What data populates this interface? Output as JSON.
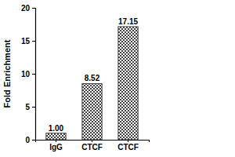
{
  "chart_data": {
    "type": "bar",
    "y_label": "Fold Enrichment",
    "categories": [
      "IgG",
      "CTCF",
      "CTCF"
    ],
    "values": [
      1.0,
      8.52,
      17.15
    ],
    "value_labels": [
      "1.00",
      "8.52",
      "17.15"
    ],
    "data_labels": true,
    "color": "#444444",
    "ylim": [
      0,
      20
    ],
    "yticks": [
      0,
      5,
      10,
      15,
      20
    ],
    "grid": false
  }
}
